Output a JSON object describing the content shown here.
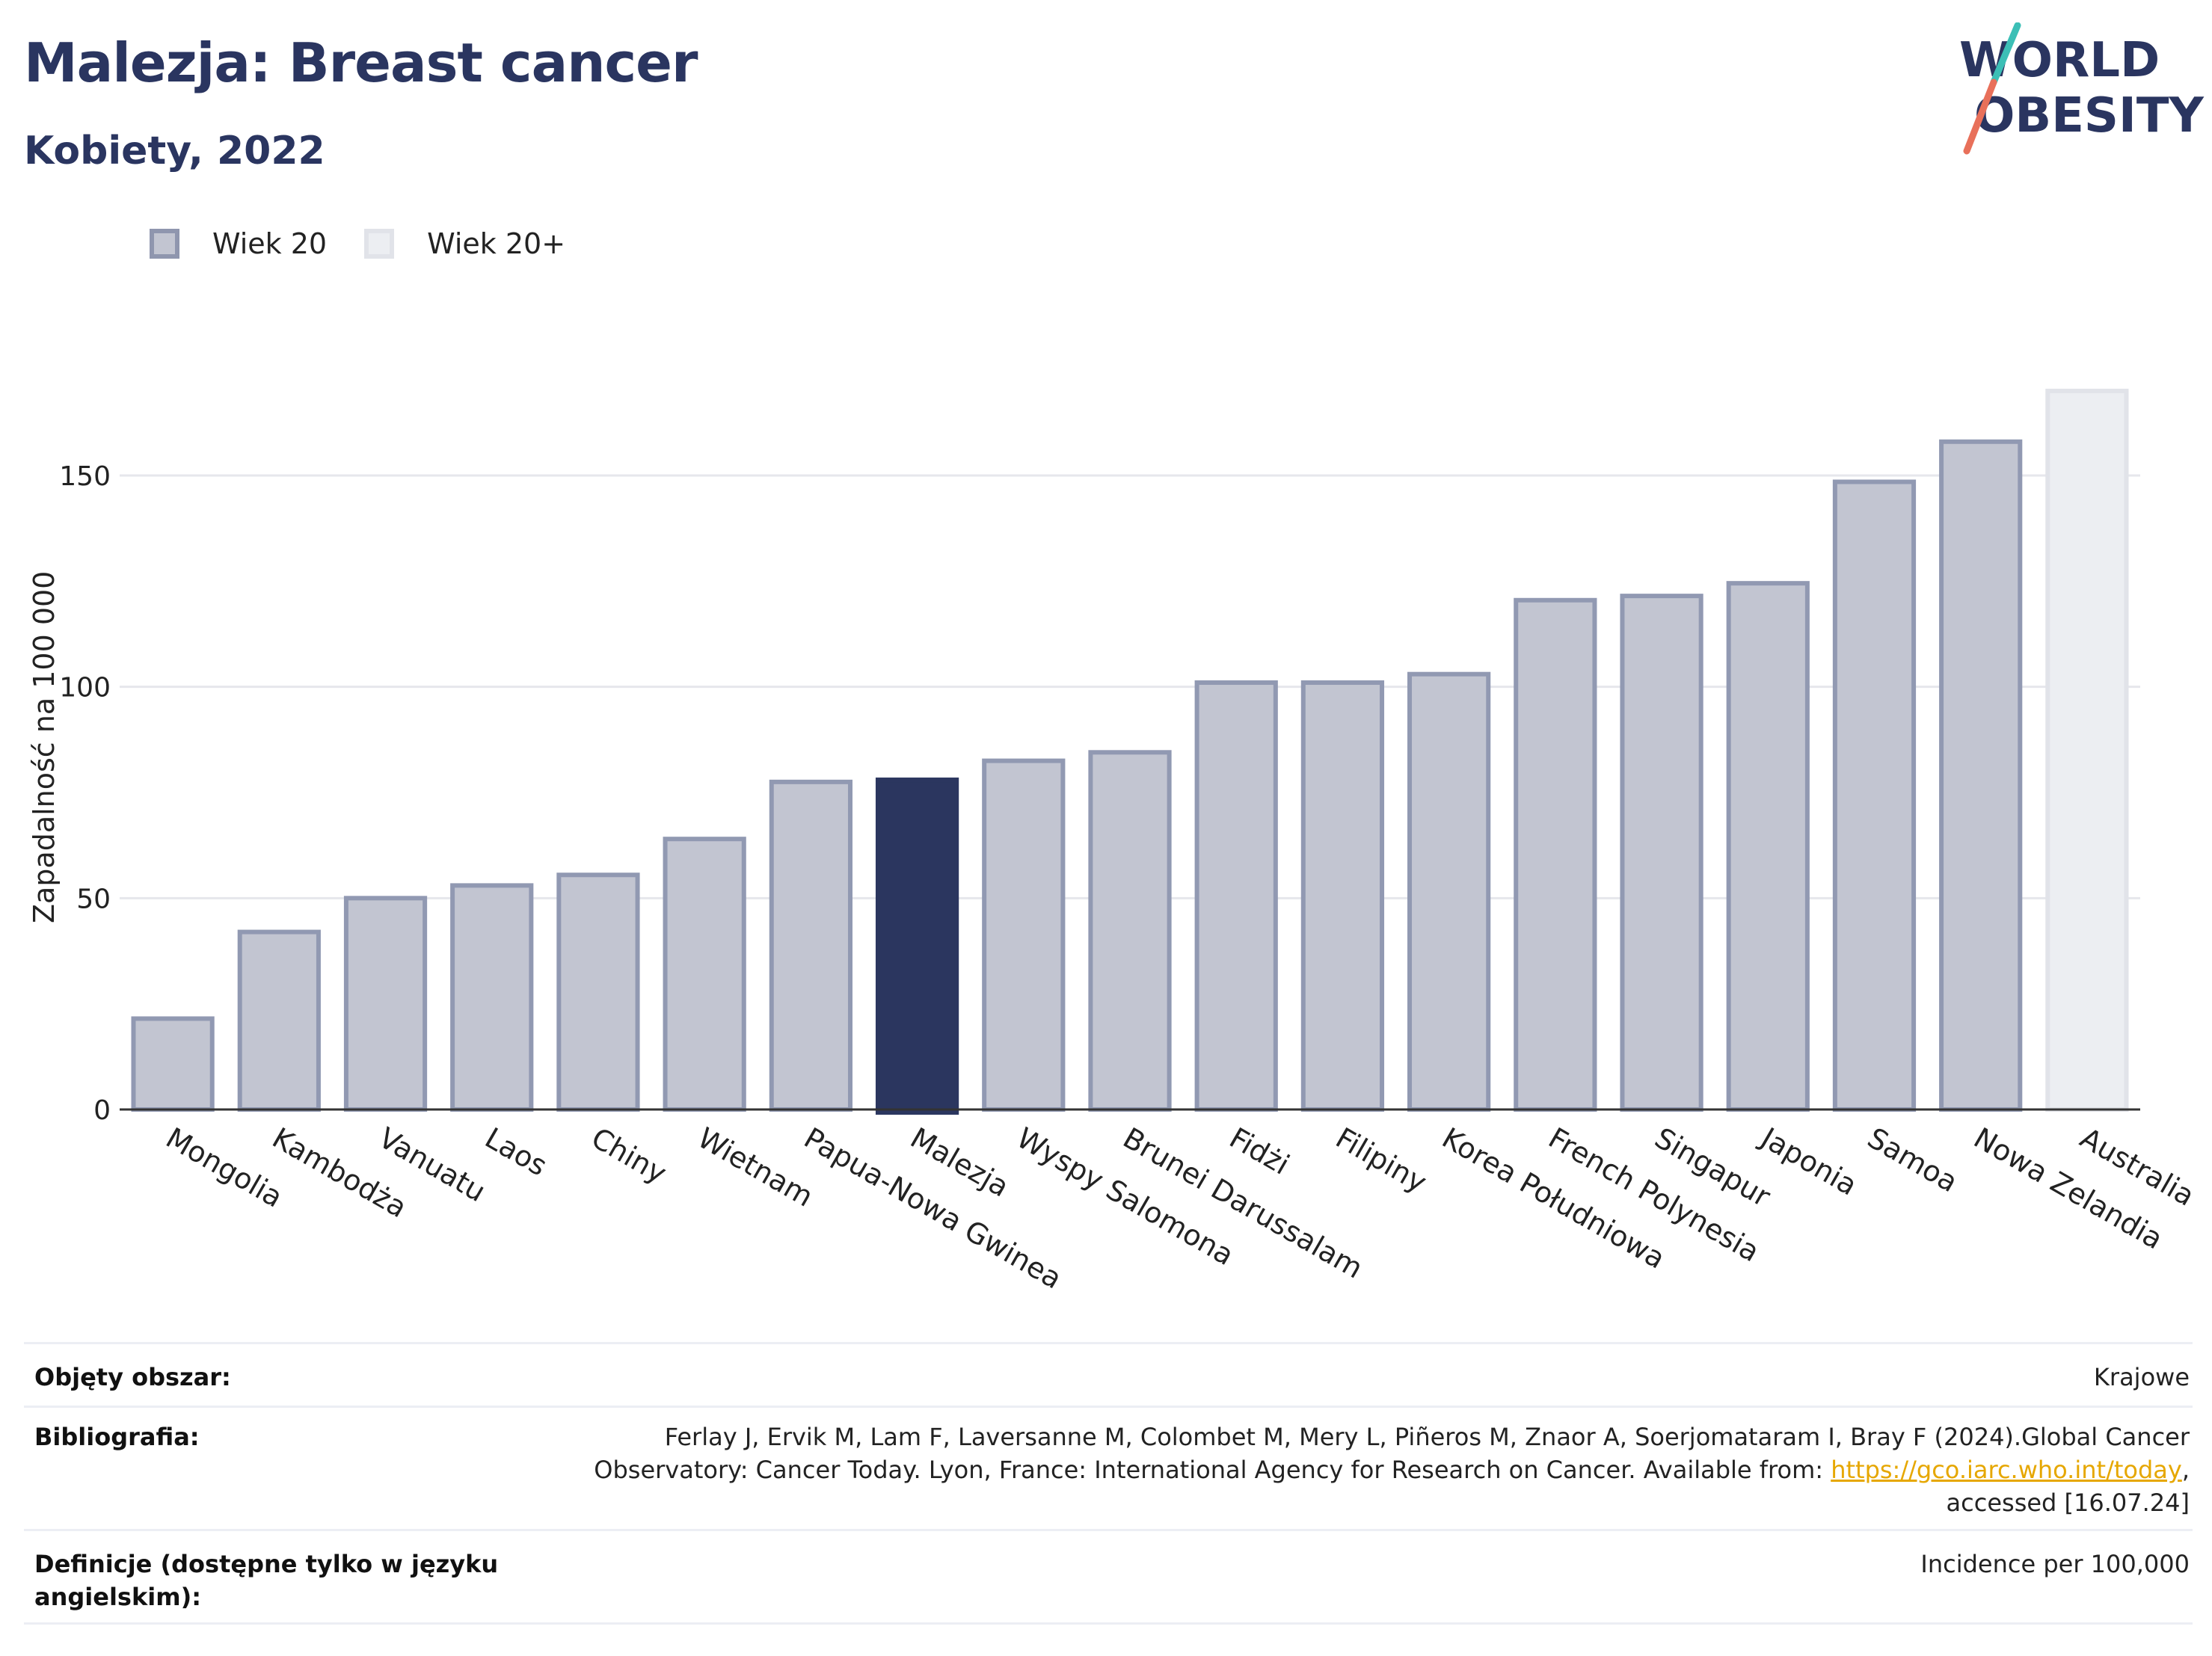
{
  "header": {
    "title": "Malezja: Breast cancer",
    "subtitle": "Kobiety, 2022"
  },
  "logo": {
    "line1": "WORLD",
    "line2": "OBESITY",
    "accent_colors": [
      "#3cbfb6",
      "#e8705a"
    ]
  },
  "legend": {
    "items": [
      {
        "label": "Wiek 20",
        "color": "#c2c5d1"
      },
      {
        "label": "Wiek 20+",
        "color": "#eceef2"
      }
    ]
  },
  "chart_data": {
    "type": "bar",
    "ylabel": "Zapadalność na 100 000",
    "ylim": [
      0,
      175
    ],
    "yticks": [
      0,
      50,
      100,
      150
    ],
    "grid": true,
    "highlight_color": "#2b365f",
    "bar_color": "#c2c5d1",
    "bar_border_color": "#9199b2",
    "alt_bar_color": "#eceef2",
    "categories": [
      "Mongolia",
      "Kambodża",
      "Vanuatu",
      "Laos",
      "Chiny",
      "Wietnam",
      "Papua-Nowa Gwinea",
      "Malezja",
      "Wyspy Salomona",
      "Brunei Darussalam",
      "Fidżi",
      "Filipiny",
      "Korea Południowa",
      "French Polynesia",
      "Singapur",
      "Japonia",
      "Samoa",
      "Nowa Zelandia",
      "Australia"
    ],
    "values": [
      21.5,
      42,
      50,
      53,
      55.5,
      64,
      77.5,
      78,
      82.5,
      84.5,
      101,
      101,
      103,
      120.5,
      121.5,
      124.5,
      148.5,
      158,
      170
    ],
    "series_group": [
      "Wiek 20",
      "Wiek 20",
      "Wiek 20",
      "Wiek 20",
      "Wiek 20",
      "Wiek 20",
      "Wiek 20",
      "Wiek 20",
      "Wiek 20",
      "Wiek 20",
      "Wiek 20",
      "Wiek 20",
      "Wiek 20",
      "Wiek 20",
      "Wiek 20",
      "Wiek 20",
      "Wiek 20",
      "Wiek 20",
      "Wiek 20+"
    ],
    "highlight": "Malezja"
  },
  "meta": {
    "coverage_label": "Objęty obszar:",
    "coverage_value": "Krajowe",
    "biblio_label": "Bibliografia:",
    "biblio_line1": "Ferlay J, Ervik M, Lam F, Laversanne M, Colombet M, Mery L, Piñeros M, Znaor A, Soerjomataram I, Bray F (2024).Global Cancer",
    "biblio_line2_pre": "Observatory: Cancer Today. Lyon, France: International Agency for Research on Cancer. Available from: ",
    "biblio_link": "https://gco.iarc.who.int/today",
    "biblio_line2_post": ",",
    "biblio_line3": "accessed [16.07.24]",
    "def_label_1": "Definicje (dostępne tylko w języku",
    "def_label_2": "angielskim):",
    "def_value": "Incidence per 100,000"
  }
}
